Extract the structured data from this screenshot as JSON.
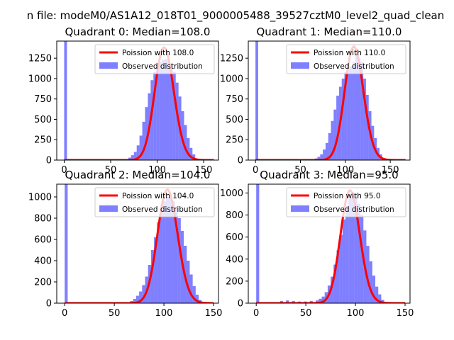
{
  "figure": {
    "suptitle": "n file: modeM0/AS1A12_018T01_9000005488_39527cztM0_level2_quad_clean"
  },
  "colors": {
    "fit_line": "#ff0000",
    "histogram": "#0000ff",
    "axis": "#000000",
    "background": "#ffffff"
  },
  "chart_data": [
    {
      "type": "bar",
      "title": "Quadrant 0: Median=108.0",
      "xlim": [
        -8,
        166
      ],
      "ylim": [
        0,
        1460
      ],
      "xticks": [
        0,
        50,
        100,
        150
      ],
      "yticks": [
        0,
        250,
        500,
        750,
        1000,
        1250
      ],
      "legend_position": "top-right",
      "legend": [
        "Poission with 108.0",
        "Observed distribution"
      ],
      "poisson_mean": 108.0,
      "poisson_total": 36000,
      "hist_bin_width": 3,
      "hist_x": [
        0,
        63,
        66,
        69,
        72,
        75,
        78,
        81,
        84,
        87,
        90,
        93,
        96,
        99,
        102,
        105,
        108,
        111,
        114,
        117,
        120,
        123,
        126,
        129,
        132,
        135,
        138,
        141
      ],
      "hist_y": [
        1460,
        5,
        12,
        30,
        60,
        100,
        180,
        300,
        470,
        650,
        820,
        980,
        1080,
        1150,
        1200,
        1230,
        1240,
        1220,
        1180,
        1080,
        950,
        780,
        600,
        430,
        270,
        150,
        70,
        20
      ]
    },
    {
      "type": "bar",
      "title": "Quadrant 1: Median=110.0",
      "xlim": [
        -8,
        172
      ],
      "ylim": [
        0,
        1460
      ],
      "xticks": [
        0,
        50,
        100,
        150
      ],
      "yticks": [
        0,
        250,
        500,
        750,
        1000,
        1250
      ],
      "legend_position": "top-right",
      "legend": [
        "Poission with 110.0",
        "Observed distribution"
      ],
      "poisson_mean": 110.0,
      "poisson_total": 36600,
      "hist_bin_width": 3,
      "hist_x": [
        0,
        30,
        60,
        66,
        69,
        72,
        75,
        78,
        81,
        84,
        87,
        90,
        93,
        96,
        99,
        102,
        105,
        108,
        111,
        114,
        117,
        120,
        123,
        126,
        129,
        132,
        135,
        138,
        141
      ],
      "hist_y": [
        1460,
        5,
        8,
        20,
        40,
        70,
        130,
        210,
        330,
        480,
        620,
        790,
        900,
        1000,
        1080,
        1150,
        1150,
        1200,
        1300,
        1250,
        1200,
        1000,
        800,
        600,
        420,
        270,
        150,
        70,
        20
      ]
    },
    {
      "type": "bar",
      "title": "Quadrant 2: Median=104.0",
      "xlim": [
        -8,
        155
      ],
      "ylim": [
        0,
        1120
      ],
      "xticks": [
        0,
        50,
        100,
        150
      ],
      "yticks": [
        0,
        200,
        400,
        600,
        800,
        1000
      ],
      "legend_position": "top-right",
      "legend": [
        "Poission with 104.0",
        "Observed distribution"
      ],
      "poisson_mean": 104.0,
      "poisson_total": 27300,
      "hist_bin_width": 3,
      "hist_x": [
        0,
        63,
        66,
        69,
        72,
        75,
        78,
        81,
        84,
        87,
        90,
        93,
        96,
        99,
        102,
        105,
        108,
        111,
        114,
        117,
        120,
        123,
        126,
        129,
        132,
        135
      ],
      "hist_y": [
        1120,
        10,
        20,
        40,
        70,
        110,
        170,
        250,
        360,
        500,
        620,
        760,
        880,
        960,
        1000,
        1000,
        960,
        900,
        800,
        680,
        540,
        400,
        270,
        160,
        80,
        30
      ]
    },
    {
      "type": "bar",
      "title": "Quadrant 3: Median=95.0",
      "xlim": [
        -8,
        155
      ],
      "ylim": [
        0,
        1080
      ],
      "xticks": [
        0,
        50,
        100,
        150
      ],
      "yticks": [
        0,
        200,
        400,
        600,
        800,
        1000
      ],
      "legend_position": "top-right",
      "legend": [
        "Poission with 95.0",
        "Observed distribution"
      ],
      "poisson_mean": 95.0,
      "poisson_total": 25000,
      "hist_bin_width": 3,
      "hist_x": [
        0,
        24,
        30,
        36,
        42,
        48,
        54,
        60,
        63,
        66,
        69,
        72,
        75,
        78,
        81,
        84,
        87,
        90,
        93,
        96,
        99,
        102,
        105,
        108,
        111,
        114,
        117,
        120,
        123,
        126
      ],
      "hist_y": [
        1080,
        20,
        25,
        20,
        15,
        15,
        20,
        25,
        40,
        60,
        100,
        160,
        240,
        350,
        480,
        620,
        760,
        880,
        950,
        1000,
        980,
        900,
        800,
        660,
        520,
        380,
        250,
        150,
        80,
        30
      ]
    }
  ]
}
